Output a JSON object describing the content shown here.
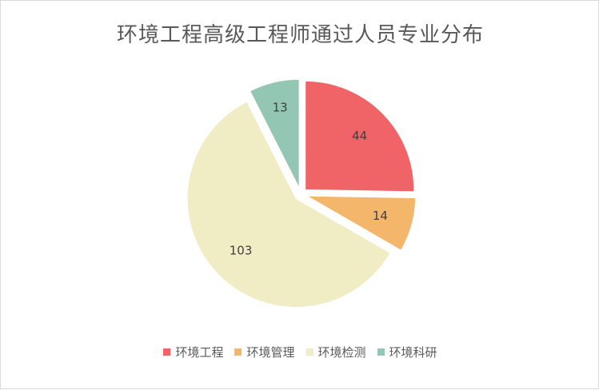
{
  "chart_data": {
    "type": "pie",
    "title": "环境工程高级工程师通过人员专业分布",
    "categories": [
      "环境工程",
      "环境管理",
      "环境检测",
      "环境科研"
    ],
    "values": [
      44,
      14,
      103,
      13
    ],
    "colors": [
      "#f06467",
      "#f3b66a",
      "#f0ecc4",
      "#93c6b3"
    ],
    "exploded": true,
    "legend_position": "bottom",
    "start_angle_deg": 0,
    "direction": "clockwise"
  }
}
